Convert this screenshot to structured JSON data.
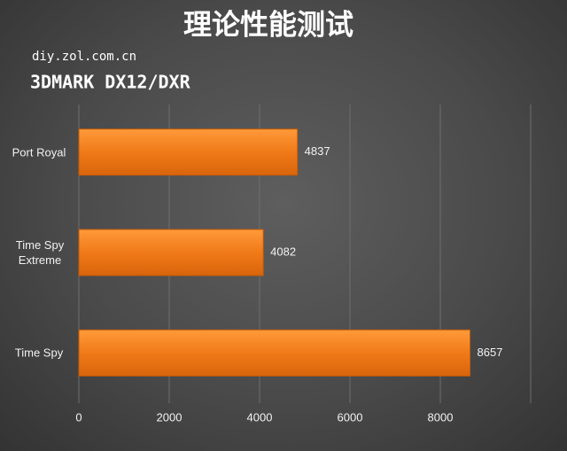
{
  "chart_data": {
    "type": "bar",
    "orientation": "horizontal",
    "title": "理论性能测试",
    "subtitle": "diy.zol.com.cn",
    "chart_label": "3DMARK DX12/DXR",
    "categories": [
      "Port Royal",
      "Time Spy Extreme",
      "Time Spy"
    ],
    "values": [
      4837,
      4082,
      8657
    ],
    "color": "#f07a18",
    "xlim": [
      0,
      10000
    ],
    "xticks": [
      0,
      2000,
      4000,
      6000,
      8000
    ],
    "grid": true
  }
}
